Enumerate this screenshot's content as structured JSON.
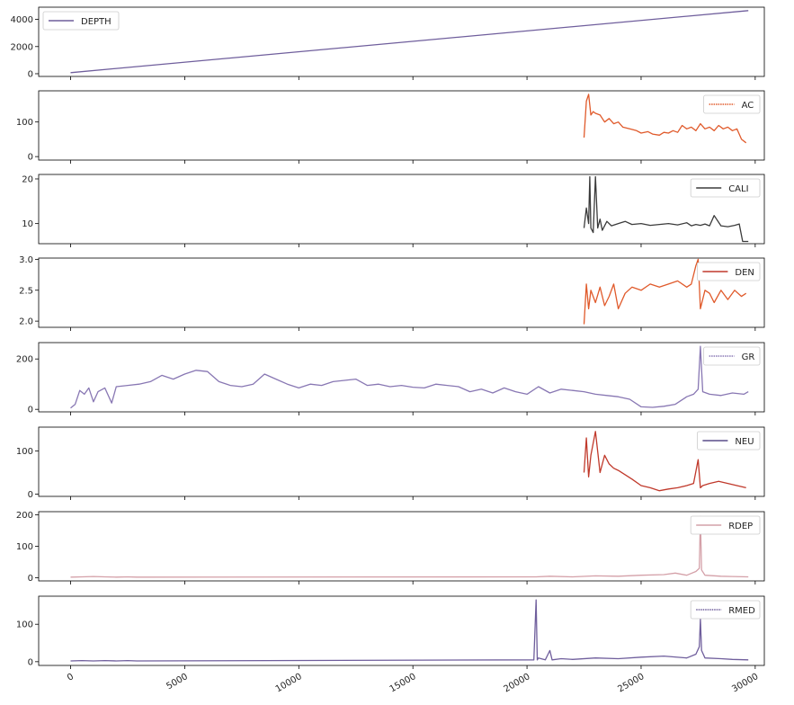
{
  "chart_data": {
    "type": "line",
    "x_range": [
      0,
      29700
    ],
    "x_ticks": [
      0,
      5000,
      10000,
      15000,
      20000,
      25000,
      30000
    ],
    "x_tick_labels": [
      "0",
      "5000",
      "10000",
      "15000",
      "20000",
      "25000",
      "30000"
    ],
    "grid": false,
    "legend_placement": "upper right",
    "series": [
      {
        "name": "DEPTH",
        "legend_placement": "upper left",
        "color": "#6f5e9c",
        "ylim": [
          -200,
          4900
        ],
        "yticks": [
          0,
          2000,
          4000
        ],
        "ytick_labels": [
          "0",
          "2000",
          "4000"
        ],
        "x": [
          0,
          29700
        ],
        "y": [
          80,
          4650
        ]
      },
      {
        "name": "AC",
        "color": "#e05a2b",
        "legend_style": "dotted",
        "ylim": [
          -10,
          190
        ],
        "yticks": [
          0,
          100
        ],
        "ytick_labels": [
          "0",
          "100"
        ],
        "x": [
          22500,
          22600,
          22700,
          22800,
          22900,
          23000,
          23200,
          23400,
          23600,
          23800,
          24000,
          24200,
          24500,
          24800,
          25000,
          25300,
          25500,
          25800,
          26000,
          26200,
          26400,
          26600,
          26800,
          27000,
          27200,
          27400,
          27600,
          27800,
          28000,
          28200,
          28400,
          28600,
          28800,
          29000,
          29200,
          29400,
          29600
        ],
        "y": [
          55,
          160,
          180,
          120,
          130,
          125,
          120,
          100,
          110,
          95,
          100,
          85,
          80,
          75,
          68,
          72,
          65,
          62,
          70,
          68,
          75,
          70,
          90,
          80,
          85,
          75,
          95,
          80,
          85,
          75,
          90,
          80,
          85,
          75,
          80,
          50,
          40
        ]
      },
      {
        "name": "CALI",
        "color": "#3b3b3b",
        "ylim": [
          5.5,
          21
        ],
        "yticks": [
          10,
          20
        ],
        "ytick_labels": [
          "10",
          "20"
        ],
        "x": [
          22500,
          22600,
          22700,
          22750,
          22800,
          22900,
          23000,
          23100,
          23200,
          23300,
          23500,
          23700,
          24000,
          24300,
          24600,
          25000,
          25400,
          25800,
          26200,
          26600,
          27000,
          27200,
          27400,
          27600,
          27800,
          28000,
          28200,
          28500,
          28800,
          29100,
          29300,
          29450,
          29700
        ],
        "y": [
          9,
          13.5,
          10,
          20.5,
          9,
          8,
          20.5,
          9,
          11,
          8.5,
          10.5,
          9.5,
          10,
          10.5,
          9.8,
          10,
          9.6,
          9.8,
          10,
          9.7,
          10.2,
          9.5,
          9.8,
          9.6,
          9.9,
          9.5,
          11.8,
          9.5,
          9.3,
          9.6,
          9.9,
          6,
          6
        ]
      },
      {
        "name": "DEN",
        "color": "#e05a2b",
        "legend_color": "#c0392b",
        "ylim": [
          1.9,
          3.02
        ],
        "yticks": [
          2.0,
          2.5,
          3.0
        ],
        "ytick_labels": [
          "2.0",
          "2.5",
          "3.0"
        ],
        "x": [
          22500,
          22600,
          22700,
          22800,
          23000,
          23200,
          23400,
          23600,
          23800,
          24000,
          24300,
          24600,
          25000,
          25400,
          25800,
          26200,
          26600,
          27000,
          27200,
          27400,
          27500,
          27600,
          27800,
          28000,
          28200,
          28500,
          28800,
          29100,
          29400,
          29600
        ],
        "y": [
          1.95,
          2.6,
          2.2,
          2.5,
          2.3,
          2.55,
          2.25,
          2.4,
          2.6,
          2.2,
          2.45,
          2.55,
          2.5,
          2.6,
          2.55,
          2.6,
          2.65,
          2.55,
          2.6,
          2.9,
          3.0,
          2.2,
          2.5,
          2.45,
          2.3,
          2.5,
          2.35,
          2.5,
          2.4,
          2.45
        ]
      },
      {
        "name": "GR",
        "color": "#8877b3",
        "legend_style": "dotted",
        "ylim": [
          -10,
          265
        ],
        "yticks": [
          0,
          200
        ],
        "ytick_labels": [
          "0",
          "200"
        ],
        "x": [
          0,
          200,
          400,
          600,
          800,
          1000,
          1200,
          1500,
          1800,
          2000,
          2500,
          3000,
          3500,
          4000,
          4500,
          5000,
          5500,
          6000,
          6500,
          7000,
          7500,
          8000,
          8500,
          9000,
          9500,
          10000,
          10500,
          11000,
          11500,
          12000,
          12500,
          13000,
          13500,
          14000,
          14500,
          15000,
          15500,
          16000,
          16500,
          17000,
          17500,
          18000,
          18500,
          19000,
          19500,
          20000,
          20500,
          21000,
          21500,
          22000,
          22500,
          23000,
          23500,
          24000,
          24500,
          25000,
          25500,
          26000,
          26500,
          27000,
          27300,
          27500,
          27600,
          27700,
          28000,
          28500,
          29000,
          29500,
          29700
        ],
        "y": [
          5,
          20,
          75,
          60,
          85,
          30,
          70,
          85,
          25,
          90,
          95,
          100,
          110,
          135,
          120,
          140,
          155,
          150,
          110,
          95,
          90,
          100,
          140,
          120,
          100,
          85,
          100,
          95,
          110,
          115,
          120,
          95,
          100,
          90,
          95,
          88,
          85,
          100,
          95,
          90,
          70,
          80,
          65,
          85,
          70,
          60,
          90,
          65,
          80,
          75,
          70,
          60,
          55,
          50,
          40,
          10,
          8,
          12,
          20,
          50,
          60,
          80,
          250,
          70,
          60,
          55,
          65,
          60,
          70
        ]
      },
      {
        "name": "NEU",
        "color": "#c0392b",
        "legend_color": "#5a4d8a",
        "ylim": [
          -5,
          155
        ],
        "yticks": [
          0,
          100
        ],
        "ytick_labels": [
          "0",
          "100"
        ],
        "x": [
          22500,
          22600,
          22700,
          22800,
          23000,
          23200,
          23400,
          23600,
          23800,
          24000,
          24300,
          24600,
          25000,
          25400,
          25800,
          26200,
          26600,
          27000,
          27300,
          27500,
          27600,
          27700,
          28000,
          28400,
          28800,
          29200,
          29600
        ],
        "y": [
          50,
          130,
          40,
          90,
          145,
          50,
          90,
          70,
          60,
          55,
          45,
          35,
          20,
          15,
          8,
          12,
          15,
          20,
          25,
          80,
          15,
          20,
          25,
          30,
          25,
          20,
          15
        ]
      },
      {
        "name": "RDEP",
        "color": "#d4a0a8",
        "ylim": [
          -10,
          210
        ],
        "yticks": [
          0,
          100,
          200
        ],
        "ytick_labels": [
          "0",
          "100",
          "200"
        ],
        "x": [
          0,
          500,
          1000,
          1500,
          2000,
          2500,
          2900,
          20400,
          21000,
          22000,
          23000,
          24000,
          25000,
          26000,
          26500,
          27000,
          27400,
          27550,
          27600,
          27650,
          27800,
          28500,
          29000,
          29700
        ],
        "y": [
          2,
          3,
          4,
          3,
          2,
          3,
          2,
          3,
          5,
          3,
          6,
          5,
          8,
          10,
          15,
          8,
          20,
          30,
          195,
          25,
          8,
          5,
          4,
          3
        ]
      },
      {
        "name": "RMED",
        "color": "#6f5e9c",
        "legend_style": "dotted",
        "ylim": [
          -10,
          175
        ],
        "yticks": [
          0,
          100
        ],
        "ytick_labels": [
          "0",
          "100"
        ],
        "x": [
          0,
          500,
          1000,
          1500,
          2000,
          2500,
          2900,
          20300,
          20400,
          20450,
          20500,
          20800,
          21000,
          21100,
          21500,
          22000,
          23000,
          24000,
          25000,
          26000,
          27000,
          27400,
          27550,
          27600,
          27650,
          27800,
          28500,
          29000,
          29700
        ],
        "y": [
          2,
          3,
          2,
          3,
          2,
          3,
          2,
          5,
          165,
          5,
          10,
          5,
          30,
          5,
          8,
          6,
          10,
          8,
          12,
          15,
          10,
          20,
          40,
          115,
          30,
          10,
          8,
          6,
          5
        ]
      }
    ]
  }
}
